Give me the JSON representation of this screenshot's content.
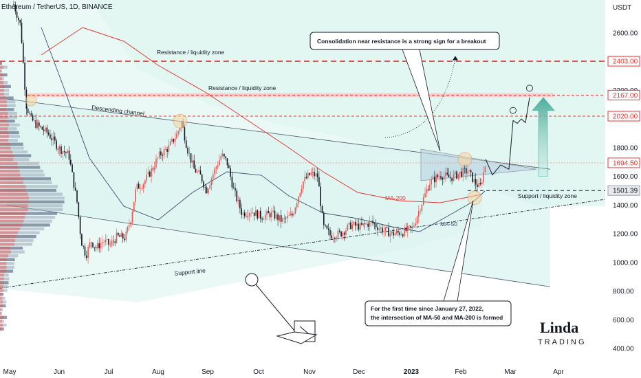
{
  "header": {
    "title": "Ethereum / TetherUS, 1D, BINANCE"
  },
  "colors": {
    "up": "#ef5350",
    "down": "#131722",
    "red": "#e53935",
    "ma50": "#3d4c6b",
    "ma200": "#e53935",
    "channel": "#d7f3ef",
    "triangle": "#b7d0e0",
    "accent": "#4f9f8f"
  },
  "chart_data": {
    "type": "candlestick",
    "y_axis": {
      "unit": "USDT",
      "ticks": [
        "2600.00",
        "2400.00",
        "2200.00",
        "2000.00",
        "1800.00",
        "1600.00",
        "1400.00",
        "1200.00",
        "1000.00",
        "800.00",
        "600.00",
        "400.00"
      ],
      "range": [
        350,
        2850
      ]
    },
    "x_axis": {
      "ticks": [
        "May",
        "Jun",
        "Jul",
        "Aug",
        "Sep",
        "Oct",
        "Nov",
        "Dec",
        "2023",
        "Feb",
        "Mar",
        "Apr"
      ]
    },
    "price_labels": [
      {
        "value": 2403.0,
        "text": "2403.00",
        "style": "red"
      },
      {
        "value": 2167.0,
        "text": "2167.00",
        "style": "red"
      },
      {
        "value": 2020.0,
        "text": "2020.00",
        "style": "red"
      },
      {
        "value": 1694.5,
        "text": "1694.50",
        "style": "red"
      },
      {
        "value": 1501.39,
        "text": "1501.39",
        "style": "gray"
      }
    ],
    "levels": [
      {
        "name": "Resistance / liquidity zone",
        "value": 2403
      },
      {
        "name": "Resistance / liquidity zone",
        "value": 2167
      },
      {
        "name": "2020 level",
        "value": 2020
      },
      {
        "name": "Support / liquidity zone",
        "value": 1501
      }
    ],
    "series_approx_close": [
      {
        "date": "2022-05",
        "value": 2800
      },
      {
        "date": "2022-05-15",
        "value": 2050
      },
      {
        "date": "2022-06",
        "value": 1800
      },
      {
        "date": "2022-06-18",
        "value": 1000
      },
      {
        "date": "2022-07-01",
        "value": 1080
      },
      {
        "date": "2022-07-15",
        "value": 1250
      },
      {
        "date": "2022-08-01",
        "value": 1650
      },
      {
        "date": "2022-08-14",
        "value": 1980
      },
      {
        "date": "2022-09-01",
        "value": 1550
      },
      {
        "date": "2022-09-12",
        "value": 1750
      },
      {
        "date": "2022-10-01",
        "value": 1320
      },
      {
        "date": "2022-11-05",
        "value": 1600
      },
      {
        "date": "2022-11-10",
        "value": 1150
      },
      {
        "date": "2022-12-15",
        "value": 1220
      },
      {
        "date": "2023-01-20",
        "value": 1600
      },
      {
        "date": "2023-02-10",
        "value": 1510
      },
      {
        "date": "2023-02-16",
        "value": 1690
      }
    ]
  },
  "annotations": {
    "resistance_top": "Resistance / liquidity zone",
    "resistance_mid": "Resistance / liquidity zone",
    "descending_channel": "Descending channel",
    "support_line": "Support line",
    "support_zone": "Support / liquidity zone",
    "ma200": "MA-200",
    "ma50": "MA-50",
    "callout_top": "Consolidation near resistance is a strong sign for a breakout",
    "callout_bottom_1": "For the first time since January 27, 2022,",
    "callout_bottom_2": "the intersection of MA-50 and MA-200 is formed"
  },
  "logo": {
    "text": "Linda",
    "sub": "TRADING"
  }
}
